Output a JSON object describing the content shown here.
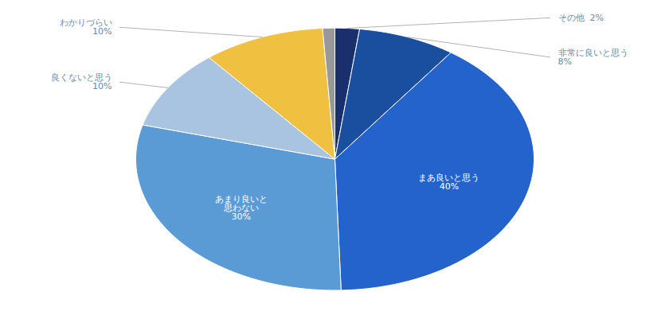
{
  "chart_data": {
    "type": "pie",
    "categories": [
      "その他  2%",
      "非常に良いと思う\n8%",
      "まあ良いと思う\n40%",
      "あまり良いと\n思わない\n30%",
      "良くないと思う\n10%",
      "わかりづらい\n10%",
      null
    ],
    "values": [
      2,
      8,
      40,
      30,
      10,
      10,
      1
    ],
    "colors": [
      "#1a2f6e",
      "#1a4fa0",
      "#2563cc",
      "#5b9bd5",
      "#a8c4e0",
      "#f0c040",
      "#999999"
    ],
    "tick_labels": false
  }
}
